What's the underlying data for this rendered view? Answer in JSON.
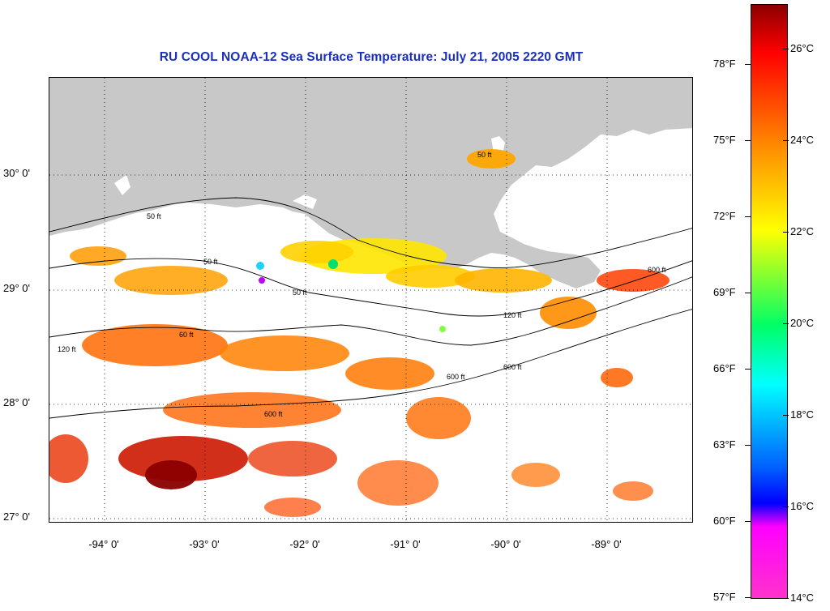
{
  "title": "RU COOL  NOAA-12  Sea Surface Temperature:  July 21, 2005 2220 GMT",
  "map": {
    "lat_labels": [
      "30° 0'",
      "29° 0'",
      "28° 0'",
      "27° 0'"
    ],
    "lon_labels": [
      "-94° 0'",
      "-93° 0'",
      "-92° 0'",
      "-91° 0'",
      "-90° 0'",
      "-89° 0'"
    ],
    "lat_range": [
      26.95,
      30.85
    ],
    "lon_range": [
      -94.5,
      -88.1
    ],
    "land_color": "#c8c8c8",
    "no_data_color": "#ffffff",
    "contour_labels": [
      "50 ft",
      "50 ft",
      "50 ft",
      "120 ft",
      "60 ft",
      "50 ft",
      "600 ft",
      "120 ft",
      "600 ft",
      "600 ft",
      "600 ft"
    ]
  },
  "colorbar": {
    "fahrenheit_labels": [
      "78°F",
      "75°F",
      "72°F",
      "69°F",
      "66°F",
      "63°F",
      "60°F",
      "57°F"
    ],
    "celsius_labels": [
      "26°C",
      "24°C",
      "22°C",
      "20°C",
      "18°C",
      "16°C",
      "14°C"
    ],
    "range_f": [
      57,
      80.5
    ],
    "gradient_colors": [
      "#8b0000",
      "#ff0000",
      "#ff8c00",
      "#ffff00",
      "#00ff66",
      "#00ffff",
      "#0060ff",
      "#0000ff",
      "#ff00ff",
      "#ff33cc"
    ]
  }
}
